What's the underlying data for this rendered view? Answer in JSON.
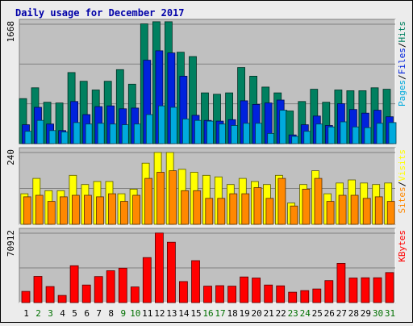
{
  "chart_data": [
    {
      "type": "bar",
      "title": "Daily usage for December 2017",
      "categories": [
        "1",
        "2",
        "3",
        "4",
        "5",
        "6",
        "7",
        "8",
        "9",
        "10",
        "11",
        "12",
        "13",
        "14",
        "15",
        "16",
        "17",
        "18",
        "19",
        "20",
        "21",
        "22",
        "23",
        "24",
        "25",
        "26",
        "27",
        "28",
        "29",
        "30",
        "31"
      ],
      "weekend_days": [
        "2",
        "3",
        "9",
        "10",
        "16",
        "17",
        "23",
        "24",
        "30",
        "31"
      ],
      "y_max_label": "1668",
      "ylim": [
        0,
        1668
      ],
      "legend": [
        {
          "label": "Pages",
          "color": "#00aadd"
        },
        {
          "label": "Files",
          "color": "#0022dd"
        },
        {
          "label": "Hits",
          "color": "#008060"
        }
      ],
      "series": [
        {
          "name": "Hits",
          "color": "#008060",
          "values": [
            620,
            770,
            570,
            560,
            980,
            860,
            740,
            860,
            1020,
            820,
            1650,
            1680,
            1680,
            1260,
            1200,
            700,
            680,
            700,
            1050,
            930,
            780,
            700,
            450,
            580,
            750,
            570,
            740,
            730,
            730,
            770,
            750
          ]
        },
        {
          "name": "Files",
          "color": "#0022dd",
          "values": [
            260,
            500,
            270,
            180,
            580,
            400,
            510,
            520,
            480,
            490,
            1150,
            1280,
            1250,
            930,
            390,
            320,
            310,
            330,
            590,
            540,
            560,
            600,
            120,
            260,
            380,
            250,
            550,
            470,
            420,
            460,
            370
          ]
        },
        {
          "name": "Pages",
          "color": "#00aadd",
          "values": [
            170,
            320,
            180,
            160,
            290,
            270,
            280,
            270,
            260,
            270,
            400,
            520,
            500,
            340,
            320,
            310,
            270,
            250,
            280,
            280,
            140,
            460,
            100,
            170,
            270,
            230,
            300,
            230,
            220,
            280,
            290
          ]
        }
      ]
    },
    {
      "type": "bar",
      "y_max_label": "240",
      "ylim": [
        0,
        240
      ],
      "legend": [
        {
          "label": "Sites",
          "color": "#ff8800"
        },
        {
          "label": "Visits",
          "color": "#ffff00"
        }
      ],
      "series": [
        {
          "name": "Visits",
          "color": "#ffff00",
          "values": [
            100,
            150,
            110,
            110,
            160,
            130,
            140,
            140,
            100,
            115,
            200,
            235,
            235,
            180,
            170,
            160,
            155,
            130,
            150,
            140,
            130,
            160,
            70,
            130,
            175,
            100,
            135,
            145,
            135,
            130,
            135
          ]
        },
        {
          "name": "Sites",
          "color": "#ff8800",
          "values": [
            90,
            95,
            75,
            90,
            95,
            95,
            90,
            100,
            75,
            95,
            150,
            170,
            175,
            110,
            110,
            85,
            85,
            100,
            100,
            120,
            85,
            150,
            60,
            115,
            150,
            75,
            95,
            95,
            85,
            90,
            75
          ]
        }
      ]
    },
    {
      "type": "bar",
      "y_max_label": "70912",
      "ylim": [
        0,
        70912
      ],
      "legend": [
        {
          "label": "KBytes",
          "color": "#ff0000"
        }
      ],
      "series": [
        {
          "name": "KBytes",
          "color": "#ff0000",
          "values": [
            11200,
            26200,
            16000,
            7200,
            36800,
            17600,
            26000,
            31800,
            34400,
            15600,
            45000,
            69500,
            60300,
            21000,
            41900,
            16400,
            16900,
            16400,
            25600,
            24600,
            17600,
            16800,
            10400,
            12000,
            13600,
            22000,
            39200,
            24600,
            24800,
            24800,
            30000
          ]
        }
      ]
    }
  ]
}
